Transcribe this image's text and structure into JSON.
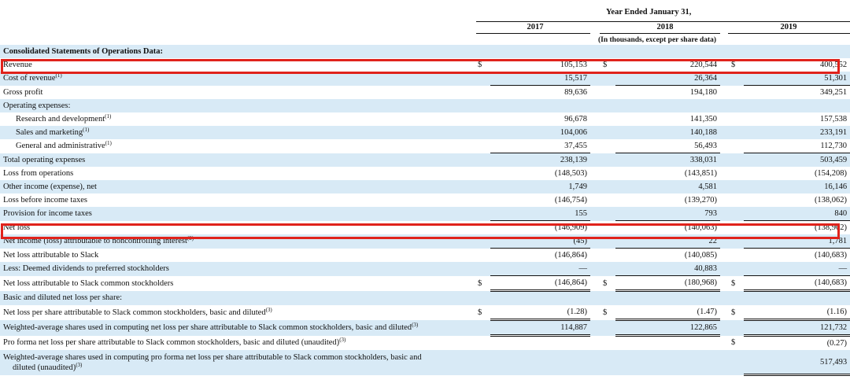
{
  "header": {
    "period": "Year Ended January 31,",
    "years": [
      "2017",
      "2018",
      "2019"
    ],
    "units": "(In thousands, except per share data)"
  },
  "section_title": "Consolidated Statements of Operations Data:",
  "rows": [
    {
      "label": "Revenue",
      "sup": "",
      "cur": "$",
      "v": [
        "105,153",
        "220,544",
        "400,552"
      ],
      "shade": false,
      "indent": false
    },
    {
      "label": "Cost of revenue",
      "sup": "(1)",
      "cur": "",
      "v": [
        "15,517",
        "26,364",
        "51,301"
      ],
      "shade": true,
      "indent": false
    },
    {
      "label": "Gross profit",
      "sup": "",
      "cur": "",
      "v": [
        "89,636",
        "194,180",
        "349,251"
      ],
      "shade": false,
      "indent": false
    },
    {
      "label": "Operating expenses:",
      "sup": "",
      "cur": "",
      "v": [
        "",
        "",
        ""
      ],
      "shade": true,
      "indent": false
    },
    {
      "label": "Research and development",
      "sup": "(1)",
      "cur": "",
      "v": [
        "96,678",
        "141,350",
        "157,538"
      ],
      "shade": false,
      "indent": true
    },
    {
      "label": "Sales and marketing",
      "sup": "(1)",
      "cur": "",
      "v": [
        "104,006",
        "140,188",
        "233,191"
      ],
      "shade": true,
      "indent": true
    },
    {
      "label": "General and administrative",
      "sup": "(1)",
      "cur": "",
      "v": [
        "37,455",
        "56,493",
        "112,730"
      ],
      "shade": false,
      "indent": true
    },
    {
      "label": "Total operating expenses",
      "sup": "",
      "cur": "",
      "v": [
        "238,139",
        "338,031",
        "503,459"
      ],
      "shade": true,
      "indent": false
    },
    {
      "label": "Loss from operations",
      "sup": "",
      "cur": "",
      "v": [
        "(148,503)",
        "(143,851)",
        "(154,208)"
      ],
      "shade": false,
      "indent": false
    },
    {
      "label": "Other income (expense), net",
      "sup": "",
      "cur": "",
      "v": [
        "1,749",
        "4,581",
        "16,146"
      ],
      "shade": true,
      "indent": false
    },
    {
      "label": "Loss before income taxes",
      "sup": "",
      "cur": "",
      "v": [
        "(146,754)",
        "(139,270)",
        "(138,062)"
      ],
      "shade": false,
      "indent": false
    },
    {
      "label": "Provision for income taxes",
      "sup": "",
      "cur": "",
      "v": [
        "155",
        "793",
        "840"
      ],
      "shade": true,
      "indent": false
    },
    {
      "label": "Net loss",
      "sup": "",
      "cur": "",
      "v": [
        "(146,909)",
        "(140,063)",
        "(138,902)"
      ],
      "shade": false,
      "indent": false
    },
    {
      "label": "Net income (loss) attributable to noncontrolling interest",
      "sup": "(2)",
      "cur": "",
      "v": [
        "(45)",
        "22",
        "1,781"
      ],
      "shade": true,
      "indent": false
    },
    {
      "label": "Net loss attributable to Slack",
      "sup": "",
      "cur": "",
      "v": [
        "(146,864)",
        "(140,085)",
        "(140,683)"
      ],
      "shade": false,
      "indent": false
    },
    {
      "label": "Less: Deemed dividends to preferred stockholders",
      "sup": "",
      "cur": "",
      "v": [
        "—",
        "40,883",
        "—"
      ],
      "shade": true,
      "indent": false
    },
    {
      "label": "Net loss attributable to Slack common stockholders",
      "sup": "",
      "cur": "$",
      "v": [
        "(146,864)",
        "(180,968)",
        "(140,683)"
      ],
      "shade": false,
      "indent": false
    },
    {
      "label": "Basic and diluted net loss per share:",
      "sup": "",
      "cur": "",
      "v": [
        "",
        "",
        ""
      ],
      "shade": true,
      "indent": false
    },
    {
      "label": "Net loss per share attributable to Slack common stockholders, basic and diluted",
      "sup": "(3)",
      "cur": "$",
      "v": [
        "(1.28)",
        "(1.47)",
        "(1.16)"
      ],
      "shade": false,
      "indent": false
    },
    {
      "label": "Weighted-average shares used in computing net loss per share attributable to Slack common stockholders, basic and diluted",
      "sup": "(3)",
      "cur": "",
      "v": [
        "114,887",
        "122,865",
        "121,732"
      ],
      "shade": true,
      "indent": false
    },
    {
      "label": "Pro forma net loss per share attributable to Slack common stockholders, basic and diluted (unaudited)",
      "sup": "(3)",
      "cur": "",
      "v": [
        "",
        "",
        "(0.27)"
      ],
      "shade": false,
      "indent": false,
      "cur2019": "$"
    },
    {
      "label": "Weighted-average shares used in computing pro forma net loss per share attributable to Slack common stockholders, basic and",
      "label2": "diluted (unaudited)",
      "sup": "(3)",
      "cur": "",
      "v": [
        "",
        "",
        "517,493"
      ],
      "shade": true,
      "indent": false
    }
  ],
  "highlights": [
    "Revenue",
    "Net loss"
  ],
  "colors": {
    "highlight": "#e0231c",
    "row_shade": "#d8eaf6"
  }
}
